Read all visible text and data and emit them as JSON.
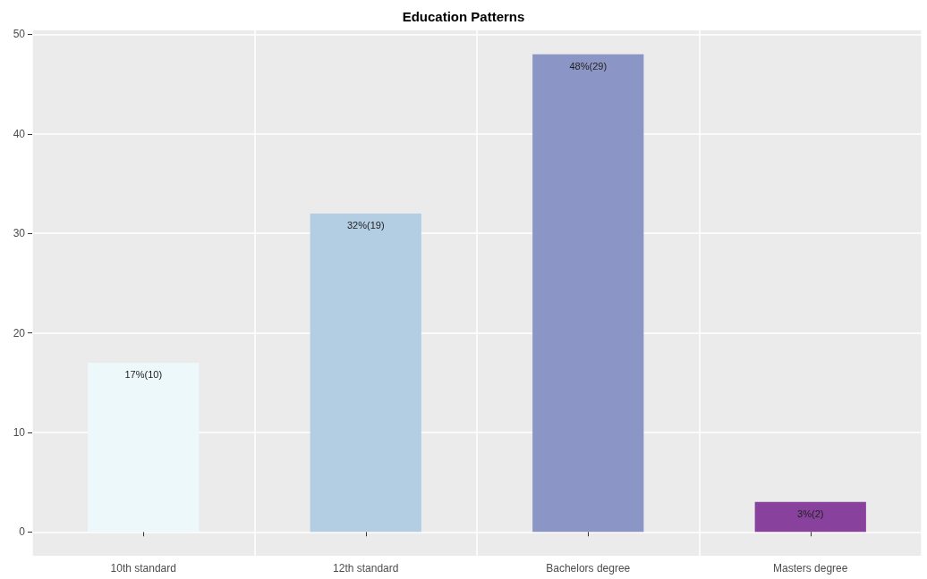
{
  "chart_data": {
    "type": "bar",
    "title": "Education Patterns",
    "categories": [
      "10th standard",
      "12th standard",
      "Bachelors degree",
      "Masters degree"
    ],
    "values": [
      17,
      32,
      48,
      3
    ],
    "colors": [
      "#edf8fb",
      "#b3cde3",
      "#8c96c6",
      "#88419d"
    ],
    "value_labels": [
      "17%(10)",
      "32%(19)",
      "48%(29)",
      "3%(2)"
    ],
    "ylim": [
      -2.4,
      50.4
    ],
    "yticks": [
      0,
      10,
      20,
      30,
      40,
      50
    ],
    "grid": true
  }
}
